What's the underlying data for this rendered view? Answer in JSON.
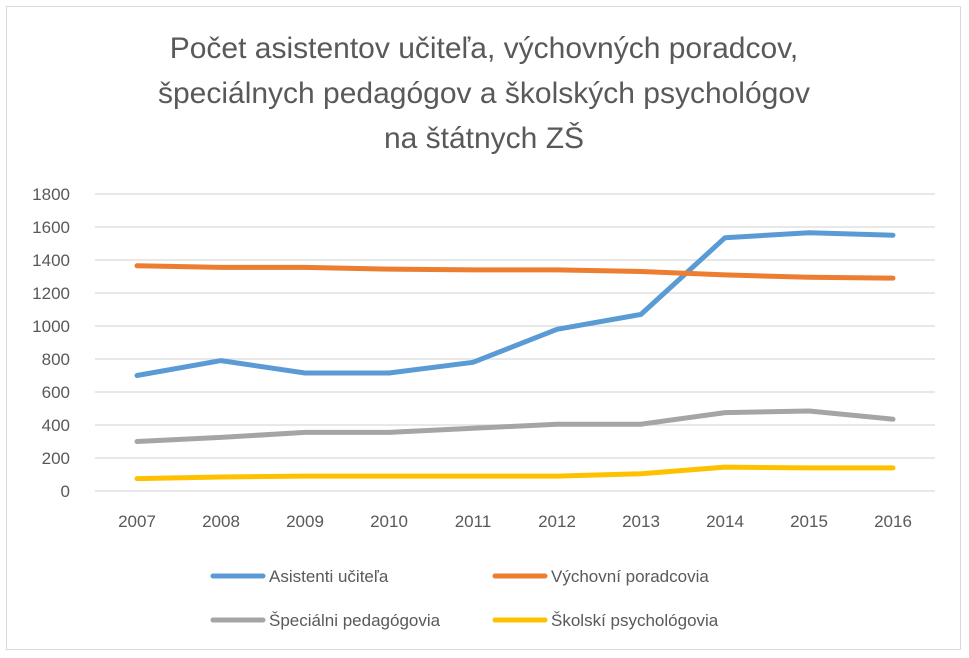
{
  "chart_data": {
    "type": "line",
    "title_lines": [
      "Počet asistentov učiteľa, výchovných poradcov,",
      "špeciálnych pedagógov a školských psychológov",
      "na štátnych ZŠ"
    ],
    "categories": [
      "2007",
      "2008",
      "2009",
      "2010",
      "2011",
      "2012",
      "2013",
      "2014",
      "2015",
      "2016"
    ],
    "ylim": [
      0,
      1800
    ],
    "y_ticks": [
      0,
      200,
      400,
      600,
      800,
      1000,
      1200,
      1400,
      1600,
      1800
    ],
    "grid": true,
    "legend_position": "bottom",
    "series": [
      {
        "name": "Asistenti učiteľa",
        "color": "#5b9bd5",
        "values": [
          700,
          790,
          715,
          715,
          780,
          980,
          1070,
          1535,
          1565,
          1550
        ]
      },
      {
        "name": "Výchovní poradcovia",
        "color": "#ed7d31",
        "values": [
          1365,
          1355,
          1355,
          1345,
          1340,
          1340,
          1330,
          1310,
          1295,
          1290
        ]
      },
      {
        "name": "Špeciálni pedagógovia",
        "color": "#a5a5a5",
        "values": [
          300,
          325,
          355,
          355,
          380,
          405,
          405,
          475,
          485,
          435
        ]
      },
      {
        "name": "Školskí psychológovia",
        "color": "#ffc000",
        "values": [
          75,
          85,
          90,
          90,
          90,
          90,
          105,
          145,
          140,
          140
        ]
      }
    ]
  }
}
